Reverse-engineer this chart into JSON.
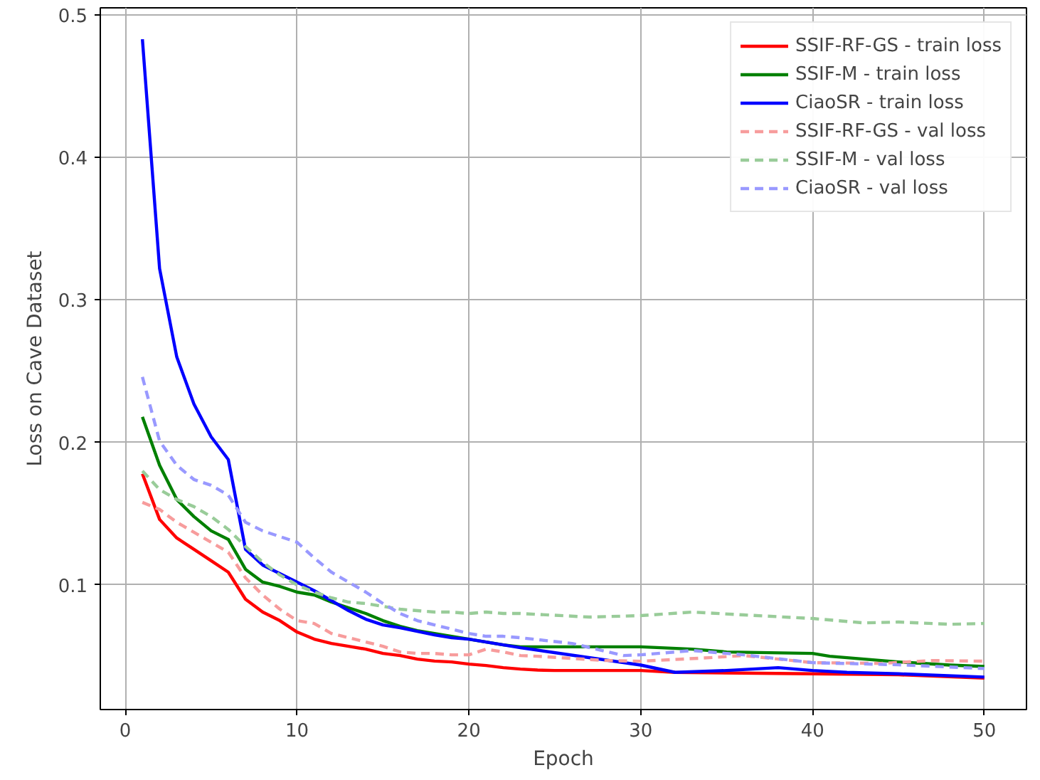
{
  "chart_data": {
    "type": "line",
    "xlabel": "Epoch",
    "ylabel": "Loss on Cave Dataset",
    "xlim": [
      -1.45,
      52.45
    ],
    "ylim": [
      0.0126,
      0.505
    ],
    "xticks": [
      0,
      10,
      20,
      30,
      40,
      50
    ],
    "yticks": [
      0.1,
      0.2,
      0.3,
      0.4,
      0.5
    ],
    "grid": true,
    "legend": "top right",
    "marker": "none",
    "series": [
      {
        "name": "SSIF-RF-GS - train loss",
        "color": "#ff0000",
        "line_style": "solid",
        "x": [
          1,
          2,
          3,
          4,
          5,
          6,
          7,
          8,
          9,
          10,
          11,
          12,
          13,
          14,
          15,
          16,
          17,
          18,
          19,
          20,
          21,
          22,
          23,
          24,
          25,
          30,
          32,
          40,
          45,
          50
        ],
        "values": [
          0.178,
          0.146,
          0.133,
          0.125,
          0.117,
          0.109,
          0.09,
          0.081,
          0.075,
          0.067,
          0.062,
          0.059,
          0.057,
          0.055,
          0.052,
          0.0505,
          0.048,
          0.0466,
          0.046,
          0.0445,
          0.0435,
          0.042,
          0.041,
          0.0403,
          0.04,
          0.04,
          0.0387,
          0.0377,
          0.037,
          0.0347
        ]
      },
      {
        "name": "SSIF-M - train loss",
        "color": "#008000",
        "line_style": "solid",
        "x": [
          1,
          2,
          3,
          4,
          5,
          6,
          7,
          8,
          9,
          10,
          11,
          12,
          13,
          14,
          15,
          16,
          17,
          18,
          19,
          20,
          21,
          22,
          23,
          30,
          33,
          35,
          40,
          41,
          45,
          48,
          50
        ],
        "values": [
          0.218,
          0.184,
          0.16,
          0.148,
          0.138,
          0.132,
          0.111,
          0.102,
          0.099,
          0.095,
          0.093,
          0.088,
          0.084,
          0.08,
          0.075,
          0.071,
          0.068,
          0.066,
          0.064,
          0.062,
          0.06,
          0.058,
          0.0566,
          0.0566,
          0.055,
          0.053,
          0.052,
          0.05,
          0.046,
          0.0438,
          0.0428
        ]
      },
      {
        "name": "CiaoSR - train loss",
        "color": "#0000ff",
        "line_style": "solid",
        "x": [
          1,
          2,
          3,
          4,
          5,
          6,
          7,
          8,
          9,
          10,
          11,
          12,
          13,
          14,
          15,
          16,
          17,
          18,
          19,
          20,
          21,
          22,
          23,
          30,
          32,
          35,
          38,
          40,
          42,
          45,
          50
        ],
        "values": [
          0.483,
          0.322,
          0.26,
          0.227,
          0.204,
          0.188,
          0.125,
          0.114,
          0.108,
          0.102,
          0.096,
          0.089,
          0.082,
          0.076,
          0.072,
          0.07,
          0.0675,
          0.065,
          0.063,
          0.062,
          0.06,
          0.058,
          0.056,
          0.0438,
          0.0387,
          0.04,
          0.042,
          0.04,
          0.0387,
          0.0377,
          0.0354
        ]
      },
      {
        "name": "SSIF-RF-GS - val loss",
        "color": "#f79c9c",
        "line_style": "dashed",
        "x": [
          1,
          2,
          3,
          4,
          5,
          6,
          7,
          8,
          9,
          10,
          11,
          12,
          13,
          14,
          15,
          16,
          17,
          18,
          19,
          20,
          21,
          22,
          23,
          24,
          28,
          30,
          34,
          36,
          40,
          44,
          47,
          50
        ],
        "values": [
          0.158,
          0.153,
          0.144,
          0.137,
          0.13,
          0.123,
          0.105,
          0.093,
          0.083,
          0.075,
          0.073,
          0.066,
          0.063,
          0.06,
          0.057,
          0.053,
          0.052,
          0.052,
          0.051,
          0.051,
          0.055,
          0.053,
          0.0505,
          0.05,
          0.047,
          0.0465,
          0.049,
          0.0505,
          0.0455,
          0.045,
          0.047,
          0.0465
        ]
      },
      {
        "name": "SSIF-M - val loss",
        "color": "#99cc99",
        "line_style": "dashed",
        "x": [
          1,
          2,
          3,
          4,
          5,
          6,
          7,
          8,
          9,
          10,
          11,
          12,
          13,
          14,
          15,
          16,
          17,
          18,
          19,
          20,
          21,
          22,
          23,
          27,
          30,
          33,
          36,
          40,
          43,
          45,
          48,
          50
        ],
        "values": [
          0.18,
          0.167,
          0.16,
          0.155,
          0.148,
          0.139,
          0.127,
          0.116,
          0.107,
          0.1,
          0.095,
          0.091,
          0.088,
          0.087,
          0.085,
          0.083,
          0.082,
          0.081,
          0.081,
          0.08,
          0.081,
          0.08,
          0.08,
          0.0775,
          0.0785,
          0.081,
          0.079,
          0.0765,
          0.0734,
          0.074,
          0.0724,
          0.073
        ]
      },
      {
        "name": "CiaoSR - val loss",
        "color": "#9999ff",
        "line_style": "dashed",
        "x": [
          1,
          2,
          3,
          4,
          5,
          6,
          7,
          8,
          9,
          10,
          11,
          12,
          13,
          14,
          15,
          16,
          17,
          18,
          19,
          20,
          21,
          22,
          23,
          26,
          29,
          30,
          33,
          36,
          40,
          45,
          50
        ],
        "values": [
          0.246,
          0.201,
          0.184,
          0.174,
          0.17,
          0.163,
          0.144,
          0.138,
          0.134,
          0.13,
          0.119,
          0.109,
          0.102,
          0.095,
          0.087,
          0.08,
          0.075,
          0.072,
          0.069,
          0.066,
          0.064,
          0.064,
          0.063,
          0.059,
          0.0505,
          0.051,
          0.054,
          0.051,
          0.0455,
          0.044,
          0.0414
        ]
      }
    ]
  }
}
